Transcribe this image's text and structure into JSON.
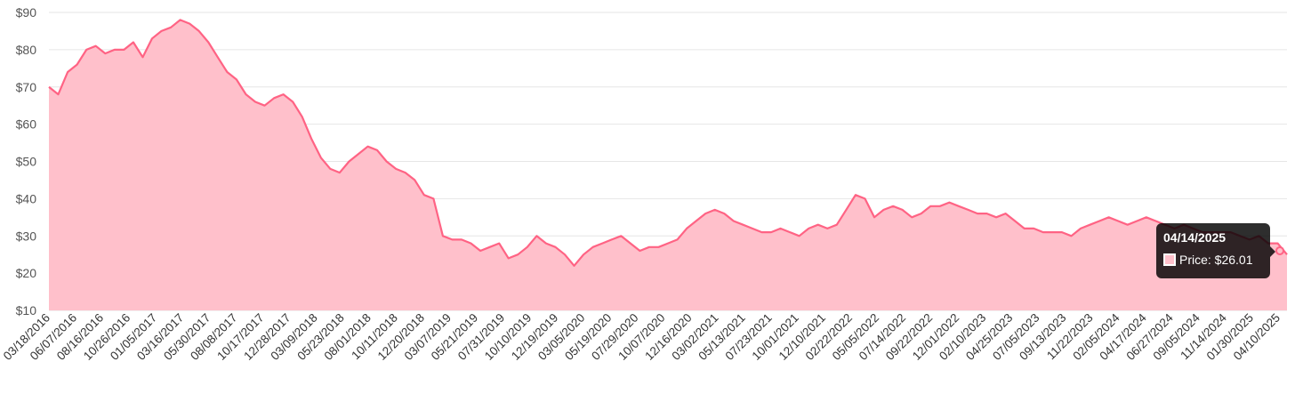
{
  "chart_data": {
    "type": "area",
    "title": "",
    "xlabel": "",
    "ylabel": "",
    "ylim": [
      10,
      90
    ],
    "grid": true,
    "legend": "none",
    "y_ticks": [
      "$10",
      "$20",
      "$30",
      "$40",
      "$50",
      "$60",
      "$70",
      "$80",
      "$90"
    ],
    "x_ticks": [
      "03/18/2016",
      "06/07/2016",
      "08/16/2016",
      "10/26/2016",
      "01/05/2017",
      "03/16/2017",
      "05/30/2017",
      "08/08/2017",
      "10/17/2017",
      "12/28/2017",
      "03/09/2018",
      "05/23/2018",
      "08/01/2018",
      "10/11/2018",
      "12/20/2018",
      "03/07/2019",
      "05/21/2019",
      "07/31/2019",
      "10/10/2019",
      "12/19/2019",
      "03/05/2020",
      "05/19/2020",
      "07/29/2020",
      "10/07/2020",
      "12/16/2020",
      "03/02/2021",
      "05/13/2021",
      "07/23/2021",
      "10/01/2021",
      "12/10/2021",
      "02/22/2022",
      "05/05/2022",
      "07/14/2022",
      "09/22/2022",
      "12/01/2022",
      "02/10/2023",
      "04/25/2023",
      "07/05/2023",
      "09/13/2023",
      "11/22/2023",
      "02/05/2024",
      "04/17/2024",
      "06/27/2024",
      "09/05/2024",
      "11/14/2024",
      "01/30/2025",
      "04/10/2025"
    ],
    "series": [
      {
        "color": "#ff6384",
        "fill": "#ffc0cb",
        "values": [
          70,
          68,
          74,
          76,
          80,
          81,
          79,
          80,
          80,
          82,
          78,
          83,
          85,
          86,
          88,
          87,
          85,
          82,
          78,
          74,
          72,
          68,
          66,
          65,
          67,
          68,
          66,
          62,
          56,
          51,
          48,
          47,
          50,
          52,
          54,
          53,
          50,
          48,
          47,
          45,
          41,
          40,
          30,
          29,
          29,
          28,
          26,
          27,
          28,
          24,
          25,
          27,
          30,
          28,
          27,
          25,
          22,
          25,
          27,
          28,
          29,
          30,
          28,
          26,
          27,
          27,
          28,
          29,
          32,
          34,
          36,
          37,
          36,
          34,
          33,
          32,
          31,
          31,
          32,
          31,
          30,
          32,
          33,
          32,
          33,
          37,
          41,
          40,
          35,
          37,
          38,
          37,
          35,
          36,
          38,
          38,
          39,
          38,
          37,
          36,
          36,
          35,
          36,
          34,
          32,
          32,
          31,
          31,
          31,
          30,
          32,
          33,
          34,
          35,
          34,
          33,
          34,
          35,
          34,
          33,
          32,
          33,
          32,
          31,
          31,
          31,
          31,
          30,
          29,
          30,
          28,
          28,
          25
        ]
      }
    ]
  },
  "tooltip": {
    "title": "04/14/2025",
    "label": "Price: $26.01",
    "swatch_color": "#ffc0cb"
  }
}
